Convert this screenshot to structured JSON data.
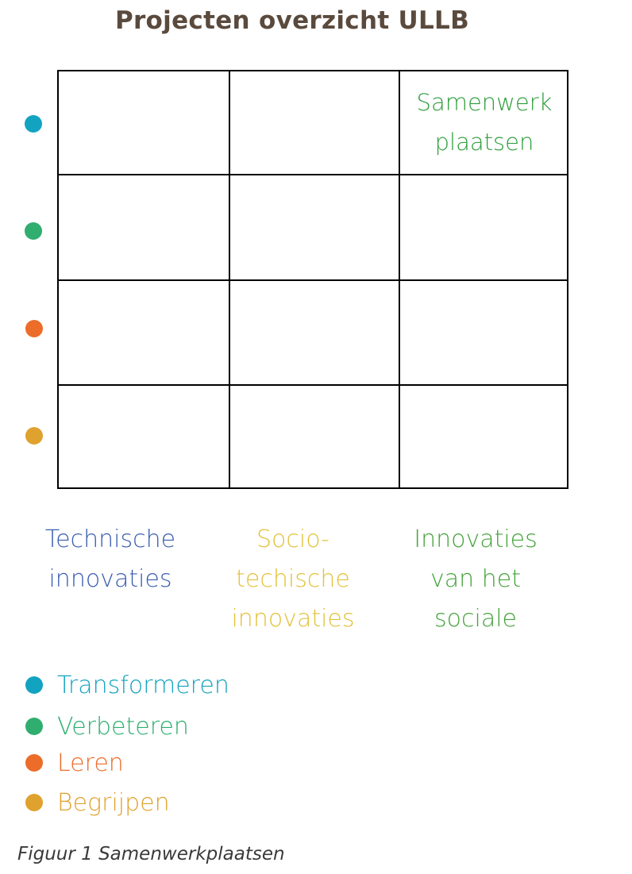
{
  "title": "Projecten overzicht ULLB",
  "matrix": {
    "cell_label": {
      "line1": "Samenwerk",
      "line2": "plaatsen",
      "color": "#2f9e3c"
    }
  },
  "columns": [
    {
      "label": "Technische\ninnovaties",
      "color": "#3a5db0"
    },
    {
      "label": "Socio-\ntechische\ninnovaties",
      "color": "#e3c13a"
    },
    {
      "label": "Innovaties\nvan het\nsociale",
      "color": "#45a33b"
    }
  ],
  "legend": [
    {
      "label": "Transformeren",
      "color": "#12a3c0"
    },
    {
      "label": "Verbeteren",
      "color": "#2fae6f"
    },
    {
      "label": "Leren",
      "color": "#ec6c2a"
    },
    {
      "label": "Begrijpen",
      "color": "#e0a22e"
    }
  ],
  "caption": "Figuur 1 Samenwerkplaatsen"
}
